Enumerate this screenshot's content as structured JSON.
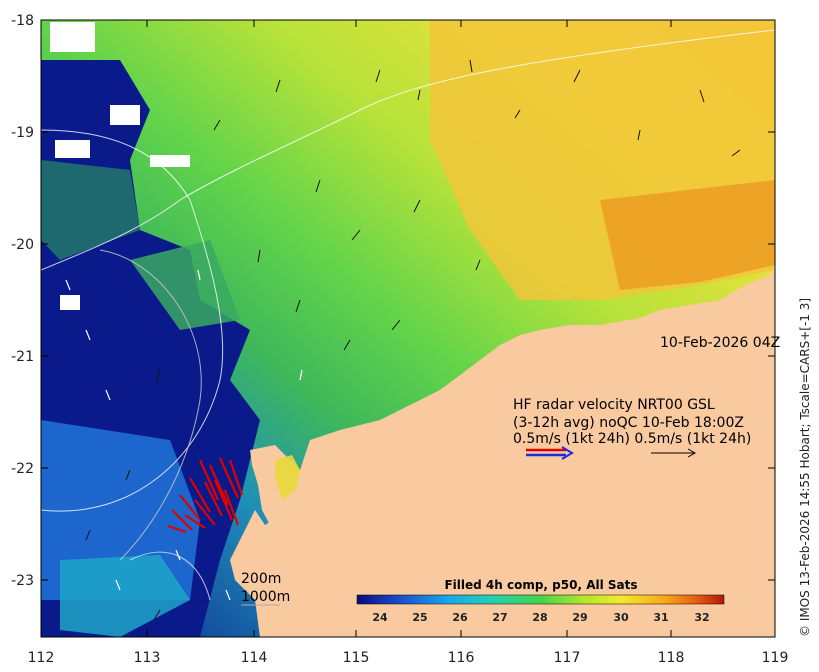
{
  "map": {
    "lon_ticks": [
      "112",
      "113",
      "114",
      "115",
      "116",
      "117",
      "118",
      "119"
    ],
    "lat_ticks": [
      "-18",
      "-19",
      "-20",
      "-21",
      "-22",
      "-23"
    ],
    "date_label": "10-Feb-2026 04Z",
    "legend": {
      "line1": "HF radar velocity  NRT00 GSL",
      "line2": "(3-12h avg) noQC 10-Feb 18:00Z",
      "line3": "0.5m/s (1kt 24h)   0.5m/s (1kt 24h)"
    },
    "isobaths": [
      "200m",
      "1000m"
    ],
    "colorbar": {
      "title": "Filled 4h comp, p50, All Sats",
      "ticks": [
        "24",
        "25",
        "26",
        "27",
        "28",
        "29",
        "30",
        "31",
        "32"
      ]
    },
    "credit": "© IMOS 13-Feb-2026 14:55 Hobart; Tscale=CARS+[-1 3]",
    "colors": {
      "land": "#f9c9a0",
      "sst_cold": "#0a0f7a",
      "sst_warm": "#c83a00",
      "radar_vectors": "#e00000",
      "legend_arrow_blue": "#1a2ee0"
    }
  }
}
